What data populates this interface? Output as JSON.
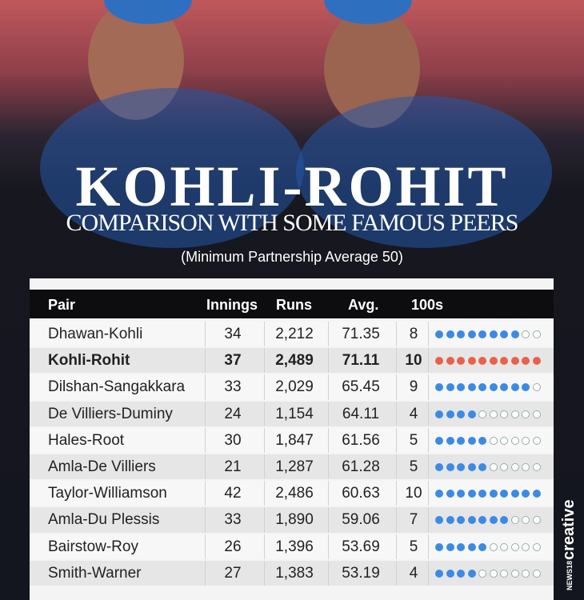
{
  "header": {
    "title": "KOHLI-ROHIT",
    "subtitle": "COMPARISON WITH SOME FAMOUS PEERS",
    "note": "(Minimum Partnership Average 50)"
  },
  "table": {
    "columns": [
      "Pair",
      "Innings",
      "Runs",
      "Avg.",
      "100s"
    ],
    "highlighted_row": 1,
    "dot_color": "#3d8ae3",
    "highlight_dot_color": "#e9614b",
    "rows": [
      [
        "Dhawan-Kohli",
        34,
        "2,212",
        71.35,
        8
      ],
      [
        "Kohli-Rohit",
        37,
        "2,489",
        71.11,
        10
      ],
      [
        "Dilshan-Sangakkara",
        33,
        "2,029",
        65.45,
        9
      ],
      [
        "De Villiers-Duminy",
        24,
        "1,154",
        64.11,
        4
      ],
      [
        "Hales-Root",
        30,
        "1,847",
        61.56,
        5
      ],
      [
        "Amla-De Villiers",
        21,
        "1,287",
        61.28,
        5
      ],
      [
        "Taylor-Williamson",
        42,
        "2,486",
        60.63,
        10
      ],
      [
        "Amla-Du Plessis",
        33,
        "1,890",
        59.06,
        7
      ],
      [
        "Bairstow-Roy",
        26,
        "1,396",
        53.69,
        5
      ],
      [
        "Smith-Warner",
        27,
        "1,383",
        53.19,
        4
      ]
    ]
  },
  "brand": {
    "network": "NEWS18",
    "label": "creative"
  }
}
